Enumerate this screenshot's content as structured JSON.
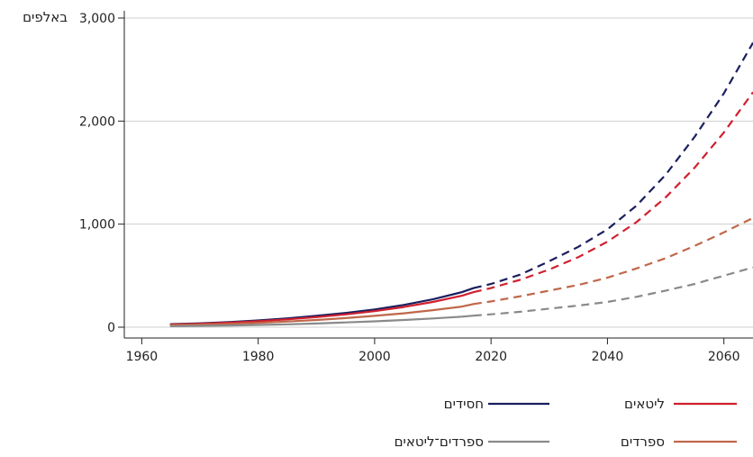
{
  "chart_data": {
    "type": "line",
    "title": "",
    "xlabel": "",
    "ylabel": "באלפים",
    "xlim": [
      1957,
      2065
    ],
    "ylim": [
      0,
      3000
    ],
    "x_ticks": [
      1960,
      1980,
      2000,
      2020,
      2040,
      2060
    ],
    "y_ticks": [
      0,
      1000,
      2000,
      3000
    ],
    "y_tick_labels": [
      "0",
      "1,000",
      "2,000",
      "3,000"
    ],
    "grid": "horizontal",
    "legend_position": "bottom",
    "projection_start": 2017,
    "series": [
      {
        "name": "חסידים",
        "color": "#1b1f5e",
        "x": [
          1965,
          1970,
          1975,
          1980,
          1985,
          1990,
          1995,
          2000,
          2005,
          2010,
          2015,
          2017,
          2020,
          2025,
          2030,
          2035,
          2040,
          2045,
          2050,
          2055,
          2060,
          2065
        ],
        "values": [
          30,
          38,
          50,
          66,
          86,
          110,
          138,
          172,
          216,
          270,
          340,
          380,
          420,
          510,
          640,
          780,
          950,
          1180,
          1480,
          1850,
          2270,
          2760
        ]
      },
      {
        "name": "ליטאים",
        "color": "#d0202e",
        "x": [
          1965,
          1970,
          1975,
          1980,
          1985,
          1990,
          1995,
          2000,
          2005,
          2010,
          2015,
          2017,
          2020,
          2025,
          2030,
          2035,
          2040,
          2045,
          2050,
          2055,
          2060,
          2065
        ],
        "values": [
          26,
          33,
          44,
          58,
          76,
          98,
          124,
          156,
          196,
          245,
          305,
          340,
          380,
          460,
          560,
          680,
          830,
          1020,
          1260,
          1550,
          1890,
          2280
        ]
      },
      {
        "name": "ספרדים",
        "color": "#c0674a",
        "x": [
          1965,
          1970,
          1975,
          1980,
          1985,
          1990,
          1995,
          2000,
          2005,
          2010,
          2015,
          2017,
          2020,
          2025,
          2030,
          2035,
          2040,
          2045,
          2050,
          2055,
          2060,
          2065
        ],
        "values": [
          20,
          25,
          32,
          42,
          55,
          70,
          88,
          110,
          135,
          165,
          200,
          225,
          250,
          300,
          355,
          410,
          480,
          570,
          670,
          790,
          920,
          1060
        ]
      },
      {
        "name": "ספרדים־ליטאים",
        "color": "#8a8a8a",
        "x": [
          1965,
          1970,
          1975,
          1980,
          1985,
          1990,
          1995,
          2000,
          2005,
          2010,
          2015,
          2017,
          2020,
          2025,
          2030,
          2035,
          2040,
          2045,
          2050,
          2055,
          2060,
          2065
        ],
        "values": [
          10,
          13,
          17,
          22,
          28,
          36,
          46,
          57,
          70,
          85,
          102,
          112,
          125,
          150,
          180,
          210,
          245,
          295,
          355,
          420,
          500,
          580
        ]
      }
    ]
  }
}
